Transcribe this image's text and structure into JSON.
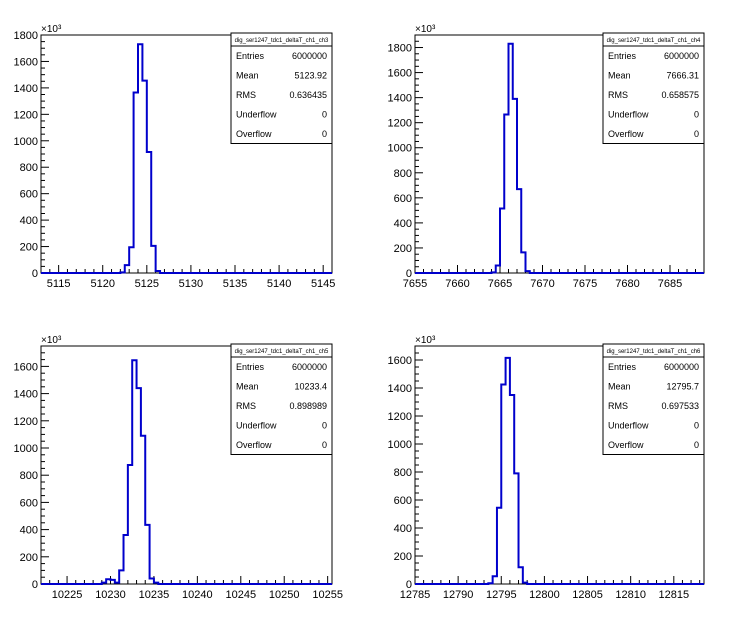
{
  "chart_data": [
    {
      "type": "histogram",
      "stats": {
        "title": "dig_ser1247_tdc1_deltaT_ch1_ch3",
        "rows": [
          {
            "label": "Entries",
            "value": "6000000"
          },
          {
            "label": "Mean",
            "value": "5123.92"
          },
          {
            "label": "RMS",
            "value": "0.636435"
          },
          {
            "label": "Underflow",
            "value": "0"
          },
          {
            "label": "Overflow",
            "value": "0"
          }
        ]
      },
      "xlim": [
        5113,
        5146
      ],
      "ylim": [
        0,
        1800
      ],
      "y_exponent": "×10³",
      "xticks": [
        5115,
        5120,
        5125,
        5130,
        5135,
        5140,
        5145
      ],
      "yticks": [
        0,
        200,
        400,
        600,
        800,
        1000,
        1200,
        1400,
        1600,
        1800
      ],
      "bin_width": 0.5,
      "bins": [
        {
          "x": 5122.0,
          "y": 5
        },
        {
          "x": 5122.5,
          "y": 60
        },
        {
          "x": 5123.0,
          "y": 195
        },
        {
          "x": 5123.5,
          "y": 1365
        },
        {
          "x": 5124.0,
          "y": 1730
        },
        {
          "x": 5124.5,
          "y": 1455
        },
        {
          "x": 5125.0,
          "y": 915
        },
        {
          "x": 5125.5,
          "y": 205
        },
        {
          "x": 5126.0,
          "y": 15
        }
      ]
    },
    {
      "type": "histogram",
      "stats": {
        "title": "dig_ser1247_tdc1_deltaT_ch1_ch4",
        "rows": [
          {
            "label": "Entries",
            "value": "6000000"
          },
          {
            "label": "Mean",
            "value": "7666.31"
          },
          {
            "label": "RMS",
            "value": "0.658575"
          },
          {
            "label": "Underflow",
            "value": "0"
          },
          {
            "label": "Overflow",
            "value": "0"
          }
        ]
      },
      "xlim": [
        7655,
        7689
      ],
      "ylim": [
        0,
        1900
      ],
      "y_exponent": "×10³",
      "xticks": [
        7655,
        7660,
        7665,
        7670,
        7675,
        7680,
        7685
      ],
      "yticks": [
        0,
        200,
        400,
        600,
        800,
        1000,
        1200,
        1400,
        1600,
        1800
      ],
      "bin_width": 0.5,
      "bins": [
        {
          "x": 7664.0,
          "y": 5
        },
        {
          "x": 7664.5,
          "y": 60
        },
        {
          "x": 7665.0,
          "y": 515
        },
        {
          "x": 7665.5,
          "y": 1265
        },
        {
          "x": 7666.0,
          "y": 1830
        },
        {
          "x": 7666.5,
          "y": 1390
        },
        {
          "x": 7667.0,
          "y": 670
        },
        {
          "x": 7667.5,
          "y": 165
        },
        {
          "x": 7668.0,
          "y": 15
        }
      ]
    },
    {
      "type": "histogram",
      "stats": {
        "title": "dig_ser1247_tdc1_deltaT_ch1_ch5",
        "rows": [
          {
            "label": "Entries",
            "value": "6000000"
          },
          {
            "label": "Mean",
            "value": "10233.4"
          },
          {
            "label": "RMS",
            "value": "0.898989"
          },
          {
            "label": "Underflow",
            "value": "0"
          },
          {
            "label": "Overflow",
            "value": "0"
          }
        ]
      },
      "xlim": [
        10222,
        10255.5
      ],
      "ylim": [
        0,
        1750
      ],
      "y_exponent": "×10³",
      "xticks": [
        10225,
        10230,
        10235,
        10240,
        10245,
        10250,
        10255
      ],
      "yticks": [
        0,
        200,
        400,
        600,
        800,
        1000,
        1200,
        1400,
        1600
      ],
      "bin_width": 0.5,
      "bins": [
        {
          "x": 10229.0,
          "y": 10
        },
        {
          "x": 10229.5,
          "y": 35
        },
        {
          "x": 10230.0,
          "y": 30
        },
        {
          "x": 10230.5,
          "y": 10
        },
        {
          "x": 10231.0,
          "y": 100
        },
        {
          "x": 10231.5,
          "y": 360
        },
        {
          "x": 10232.0,
          "y": 875
        },
        {
          "x": 10232.5,
          "y": 1645
        },
        {
          "x": 10233.0,
          "y": 1440
        },
        {
          "x": 10233.5,
          "y": 1090
        },
        {
          "x": 10234.0,
          "y": 435
        },
        {
          "x": 10234.5,
          "y": 40
        },
        {
          "x": 10235.0,
          "y": 10
        }
      ]
    },
    {
      "type": "histogram",
      "stats": {
        "title": "dig_ser1247_tdc1_deltaT_ch1_ch6",
        "rows": [
          {
            "label": "Entries",
            "value": "6000000"
          },
          {
            "label": "Mean",
            "value": "12795.7"
          },
          {
            "label": "RMS",
            "value": "0.697533"
          },
          {
            "label": "Underflow",
            "value": "0"
          },
          {
            "label": "Overflow",
            "value": "0"
          }
        ]
      },
      "xlim": [
        12785,
        12818.5
      ],
      "ylim": [
        0,
        1700
      ],
      "y_exponent": "×10³",
      "xticks": [
        12785,
        12790,
        12795,
        12800,
        12805,
        12810,
        12815
      ],
      "yticks": [
        0,
        200,
        400,
        600,
        800,
        1000,
        1200,
        1400,
        1600
      ],
      "bin_width": 0.5,
      "bins": [
        {
          "x": 12793.5,
          "y": 5
        },
        {
          "x": 12794.0,
          "y": 55
        },
        {
          "x": 12794.5,
          "y": 545
        },
        {
          "x": 12795.0,
          "y": 1425
        },
        {
          "x": 12795.5,
          "y": 1615
        },
        {
          "x": 12796.0,
          "y": 1350
        },
        {
          "x": 12796.5,
          "y": 790
        },
        {
          "x": 12797.0,
          "y": 120
        },
        {
          "x": 12797.5,
          "y": 10
        }
      ]
    }
  ],
  "colors": {
    "histogram_line": "#0000cc",
    "axis": "#000000",
    "background": "#ffffff"
  }
}
